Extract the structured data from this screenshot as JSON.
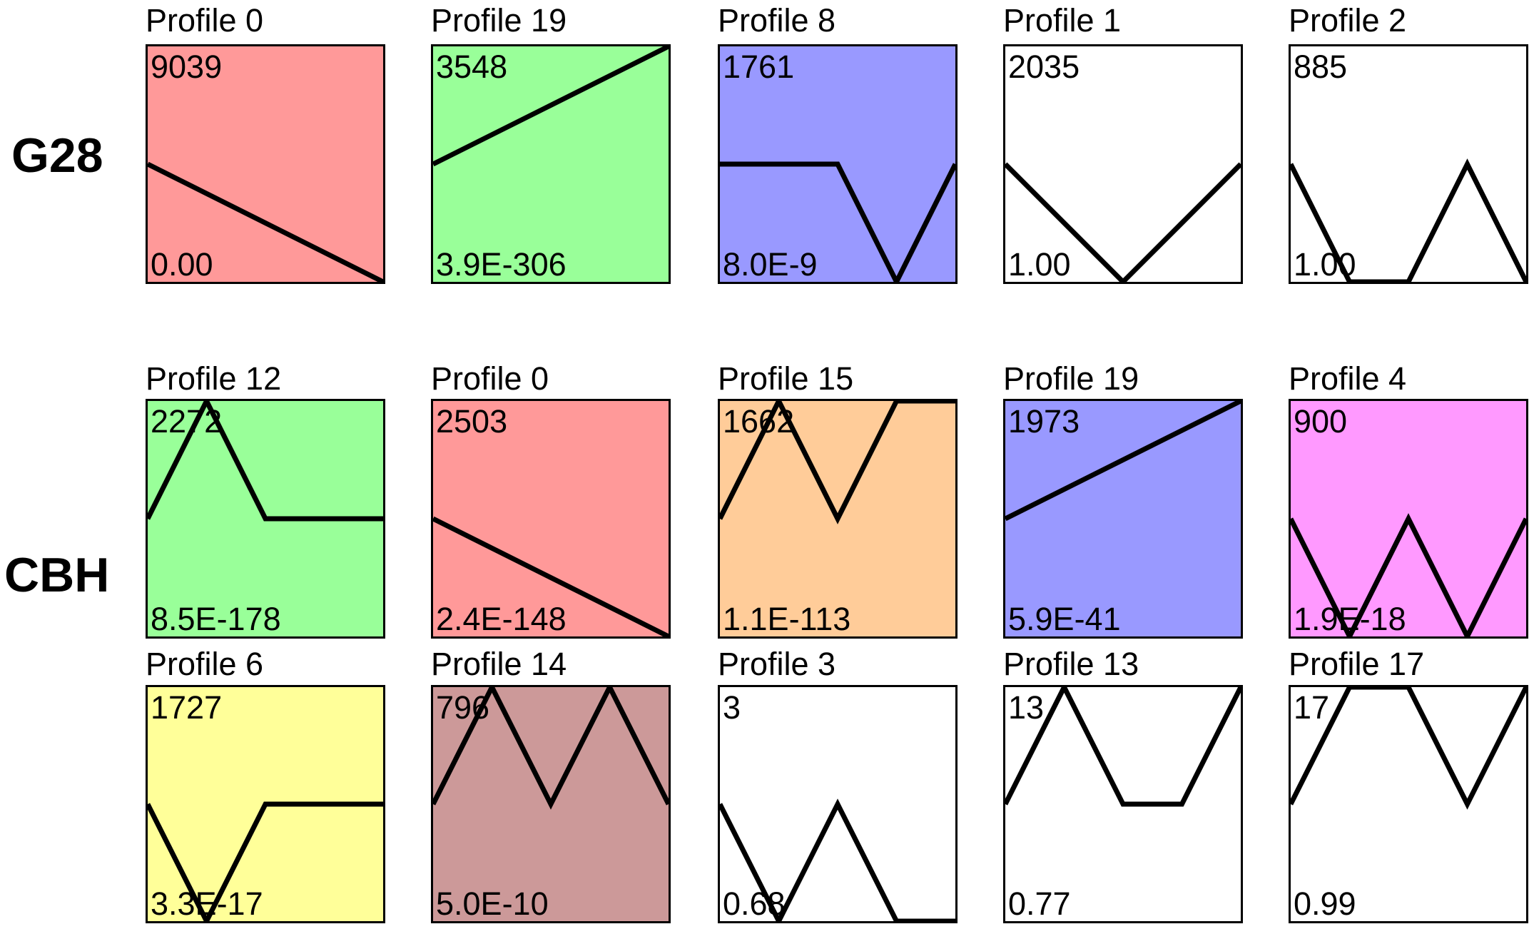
{
  "groups": [
    {
      "label": "G28"
    },
    {
      "label": "CBH"
    }
  ],
  "chart_data": [
    {
      "type": "line",
      "group": "G28",
      "title": "Profile 0",
      "count": "9039",
      "pvalue": "0.00",
      "color": "#ff9999",
      "values": [
        0,
        -0.75,
        -1.5
      ]
    },
    {
      "type": "line",
      "group": "G28",
      "title": "Profile 19",
      "count": "3548",
      "pvalue": "3.9E-306",
      "color": "#99ff99",
      "values": [
        0,
        0.75,
        1.5
      ]
    },
    {
      "type": "line",
      "group": "G28",
      "title": "Profile 8",
      "count": "1761",
      "pvalue": "8.0E-9",
      "color": "#9999ff",
      "values": [
        0,
        0,
        0,
        -1.5,
        0
      ]
    },
    {
      "type": "line",
      "group": "G28",
      "title": "Profile 1",
      "count": "2035",
      "pvalue": "1.00",
      "color": "#ffffff",
      "values": [
        0,
        -1.5,
        0
      ]
    },
    {
      "type": "line",
      "group": "G28",
      "title": "Profile 2",
      "count": "885",
      "pvalue": "1.00",
      "color": "#ffffff",
      "values": [
        0,
        -1.5,
        -1.5,
        0,
        -1.5
      ]
    },
    {
      "type": "line",
      "group": "CBH",
      "title": "Profile 12",
      "count": "2272",
      "pvalue": "8.5E-178",
      "color": "#99ff99",
      "values": [
        0,
        1.5,
        0,
        0,
        0
      ]
    },
    {
      "type": "line",
      "group": "CBH",
      "title": "Profile 0",
      "count": "2503",
      "pvalue": "2.4E-148",
      "color": "#ff9999",
      "values": [
        0,
        -0.75,
        -1.5
      ]
    },
    {
      "type": "line",
      "group": "CBH",
      "title": "Profile 15",
      "count": "1662",
      "pvalue": "1.1E-113",
      "color": "#ffcc99",
      "values": [
        0,
        1.5,
        0,
        1.5,
        1.5
      ]
    },
    {
      "type": "line",
      "group": "CBH",
      "title": "Profile 19",
      "count": "1973",
      "pvalue": "5.9E-41",
      "color": "#9999ff",
      "values": [
        0,
        0.75,
        1.5
      ]
    },
    {
      "type": "line",
      "group": "CBH",
      "title": "Profile 4",
      "count": "900",
      "pvalue": "1.9E-18",
      "color": "#ff99ff",
      "values": [
        0,
        -1.5,
        0,
        -1.5,
        0
      ]
    },
    {
      "type": "line",
      "group": "CBH",
      "title": "Profile 6",
      "count": "1727",
      "pvalue": "3.3E-17",
      "color": "#ffff99",
      "values": [
        0,
        -1.5,
        0,
        0,
        0
      ]
    },
    {
      "type": "line",
      "group": "CBH",
      "title": "Profile 14",
      "count": "796",
      "pvalue": "5.0E-10",
      "color": "#cc9999",
      "values": [
        0,
        1.5,
        0,
        1.5,
        0
      ]
    },
    {
      "type": "line",
      "group": "CBH",
      "title": "Profile 3",
      "count": "3",
      "pvalue": "0.68",
      "color": "#ffffff",
      "values": [
        0,
        -1.5,
        0,
        -1.5,
        -1.5
      ]
    },
    {
      "type": "line",
      "group": "CBH",
      "title": "Profile 13",
      "count": "13",
      "pvalue": "0.77",
      "color": "#ffffff",
      "values": [
        0,
        1.5,
        0,
        0,
        1.5
      ]
    },
    {
      "type": "line",
      "group": "CBH",
      "title": "Profile 17",
      "count": "17",
      "pvalue": "0.99",
      "color": "#ffffff",
      "values": [
        0,
        1.5,
        1.5,
        0,
        1.5
      ]
    }
  ]
}
